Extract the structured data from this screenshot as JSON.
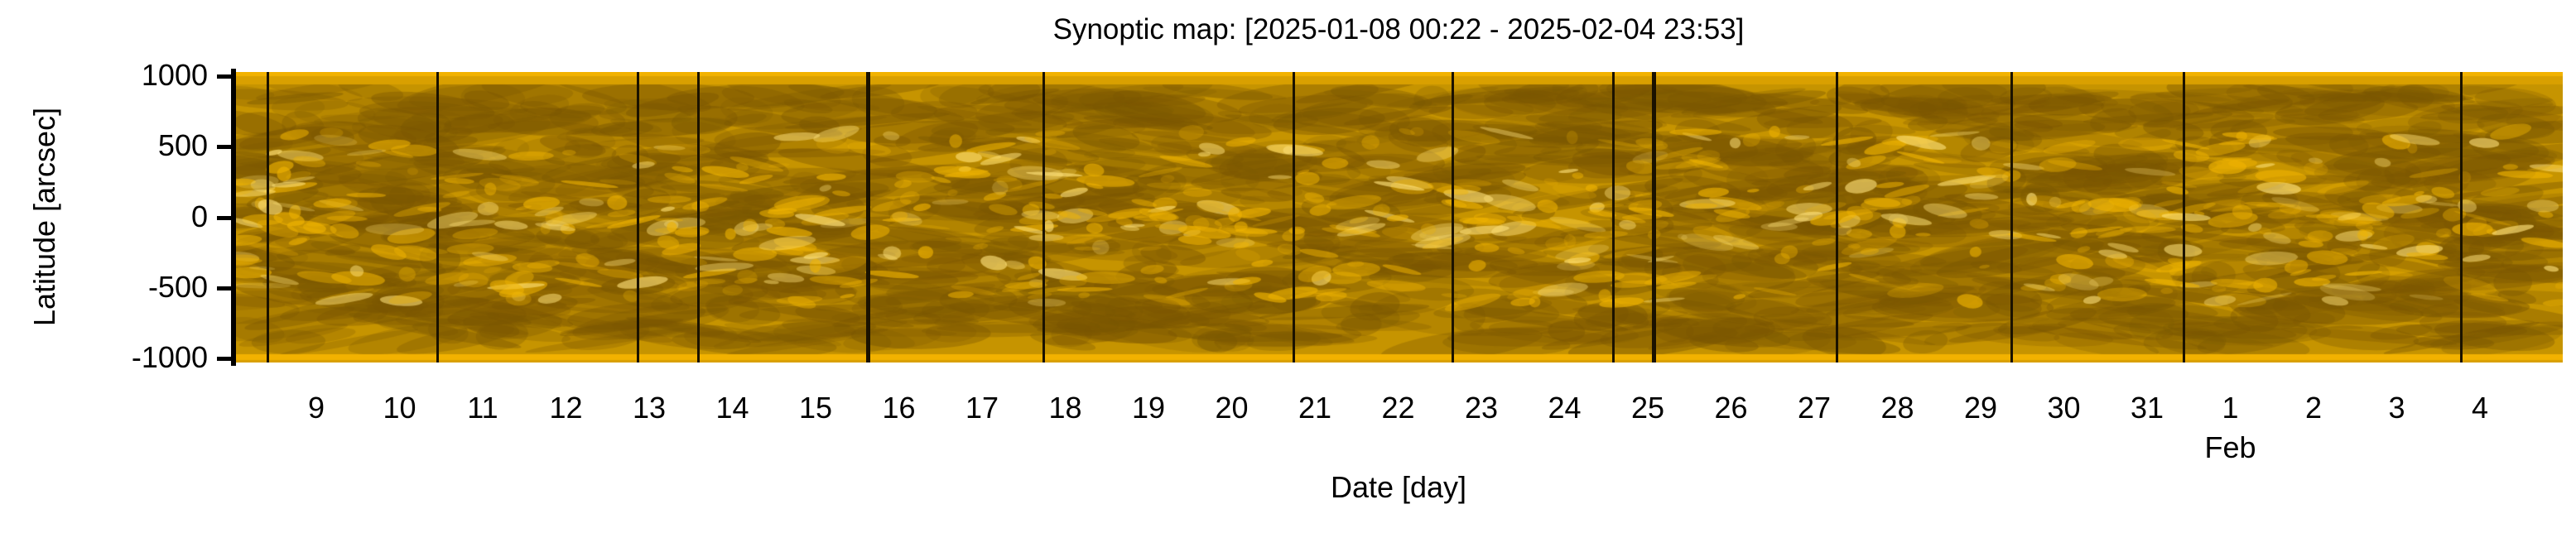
{
  "chart_data": {
    "type": "heatmap",
    "title": "Synoptic map: [2025-01-08 00:22 - 2025-02-04 23:53]",
    "xlabel": "Date [day]",
    "ylabel": "Latitude [arcsec]",
    "x_range_days": [
      0,
      27.98
    ],
    "x_start": "2025-01-08 00:22",
    "x_end": "2025-02-04 23:53",
    "ylim": [
      -1030,
      1030
    ],
    "yticks": [
      1000,
      500,
      0,
      -500,
      -1000
    ],
    "ytick_labels": [
      "1000",
      "500",
      "0",
      "-500",
      "-1000"
    ],
    "xtick_first_offset_days": 0.985,
    "xtick_labels": [
      "9",
      "10",
      "11",
      "12",
      "13",
      "14",
      "15",
      "16",
      "17",
      "18",
      "19",
      "20",
      "21",
      "22",
      "23",
      "24",
      "25",
      "26",
      "27",
      "28",
      "29",
      "30",
      "31",
      "1",
      "2",
      "3",
      "4"
    ],
    "month_label": {
      "text": "Feb",
      "tick_index": 23
    },
    "data_gaps_days": [
      0.4,
      2.44,
      4.85,
      5.57,
      7.61,
      9.72,
      12.73,
      14.64,
      16.57,
      17.05,
      19.25,
      21.35,
      23.42,
      26.76
    ],
    "thick_gaps_days": [
      7.61,
      17.05
    ],
    "colormap": {
      "dark": "#7a5600",
      "mid": "#c69400",
      "bright": "#ffe27a",
      "gap": "#1a1200"
    },
    "grid": false
  }
}
